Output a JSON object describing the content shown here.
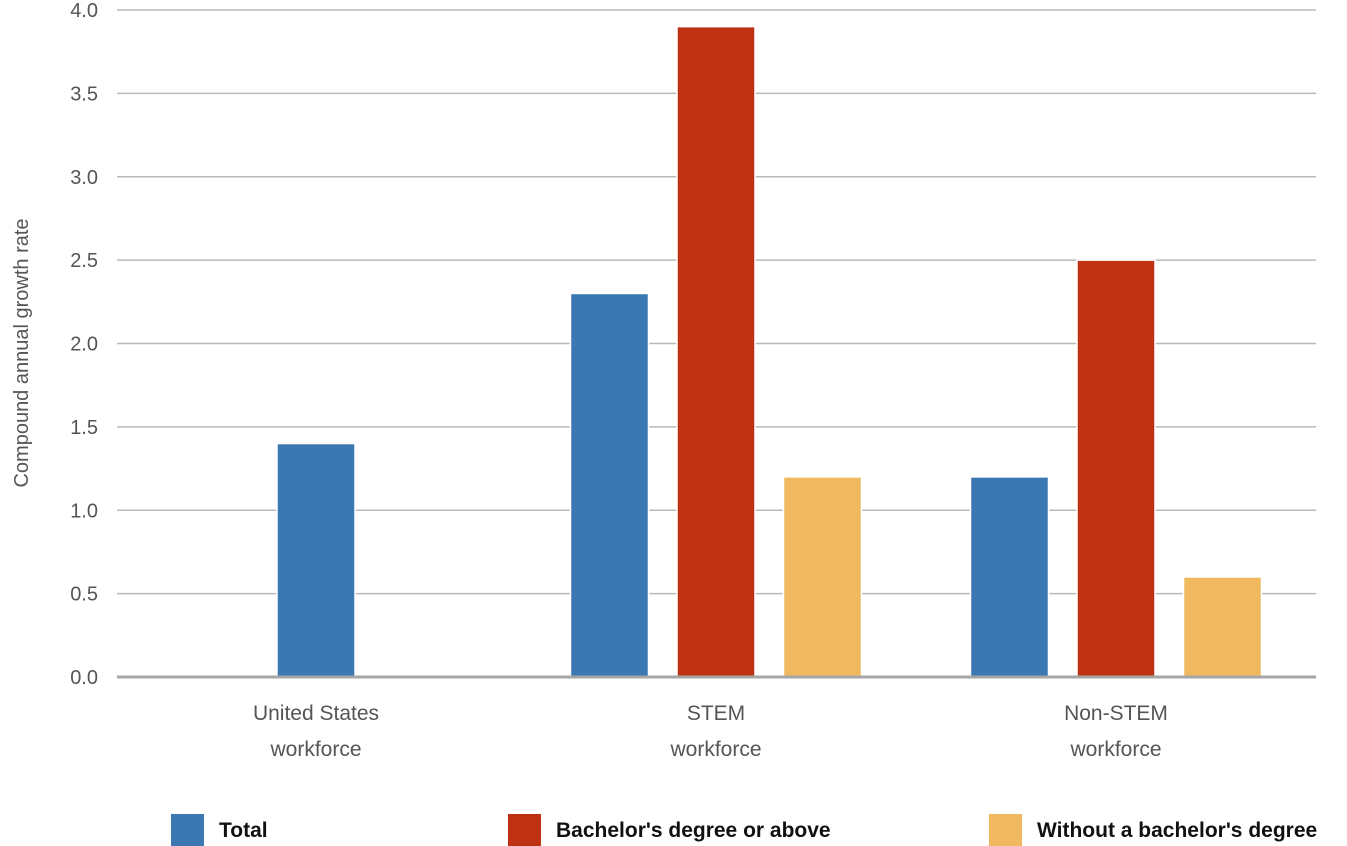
{
  "chart_data": {
    "type": "bar",
    "ylabel": "Compound annual growth rate",
    "ylim": [
      0,
      4.0
    ],
    "yticks": [
      "0.0",
      "0.5",
      "1.0",
      "1.5",
      "2.0",
      "2.5",
      "3.0",
      "3.5",
      "4.0"
    ],
    "grid": true,
    "legend_position": "bottom",
    "categories": [
      [
        "United States",
        "workforce"
      ],
      [
        "STEM",
        "workforce"
      ],
      [
        "Non-STEM",
        "workforce"
      ]
    ],
    "series": [
      {
        "name": "Total",
        "color": "#3b77b0",
        "values": [
          1.4,
          2.3,
          1.2
        ]
      },
      {
        "name": "Bachelor's degree or above",
        "color": "#be3113",
        "values": [
          null,
          3.9,
          2.5
        ]
      },
      {
        "name": "Without a bachelor's degree",
        "color": "#f0b960",
        "values": [
          null,
          1.2,
          0.6
        ]
      }
    ]
  }
}
